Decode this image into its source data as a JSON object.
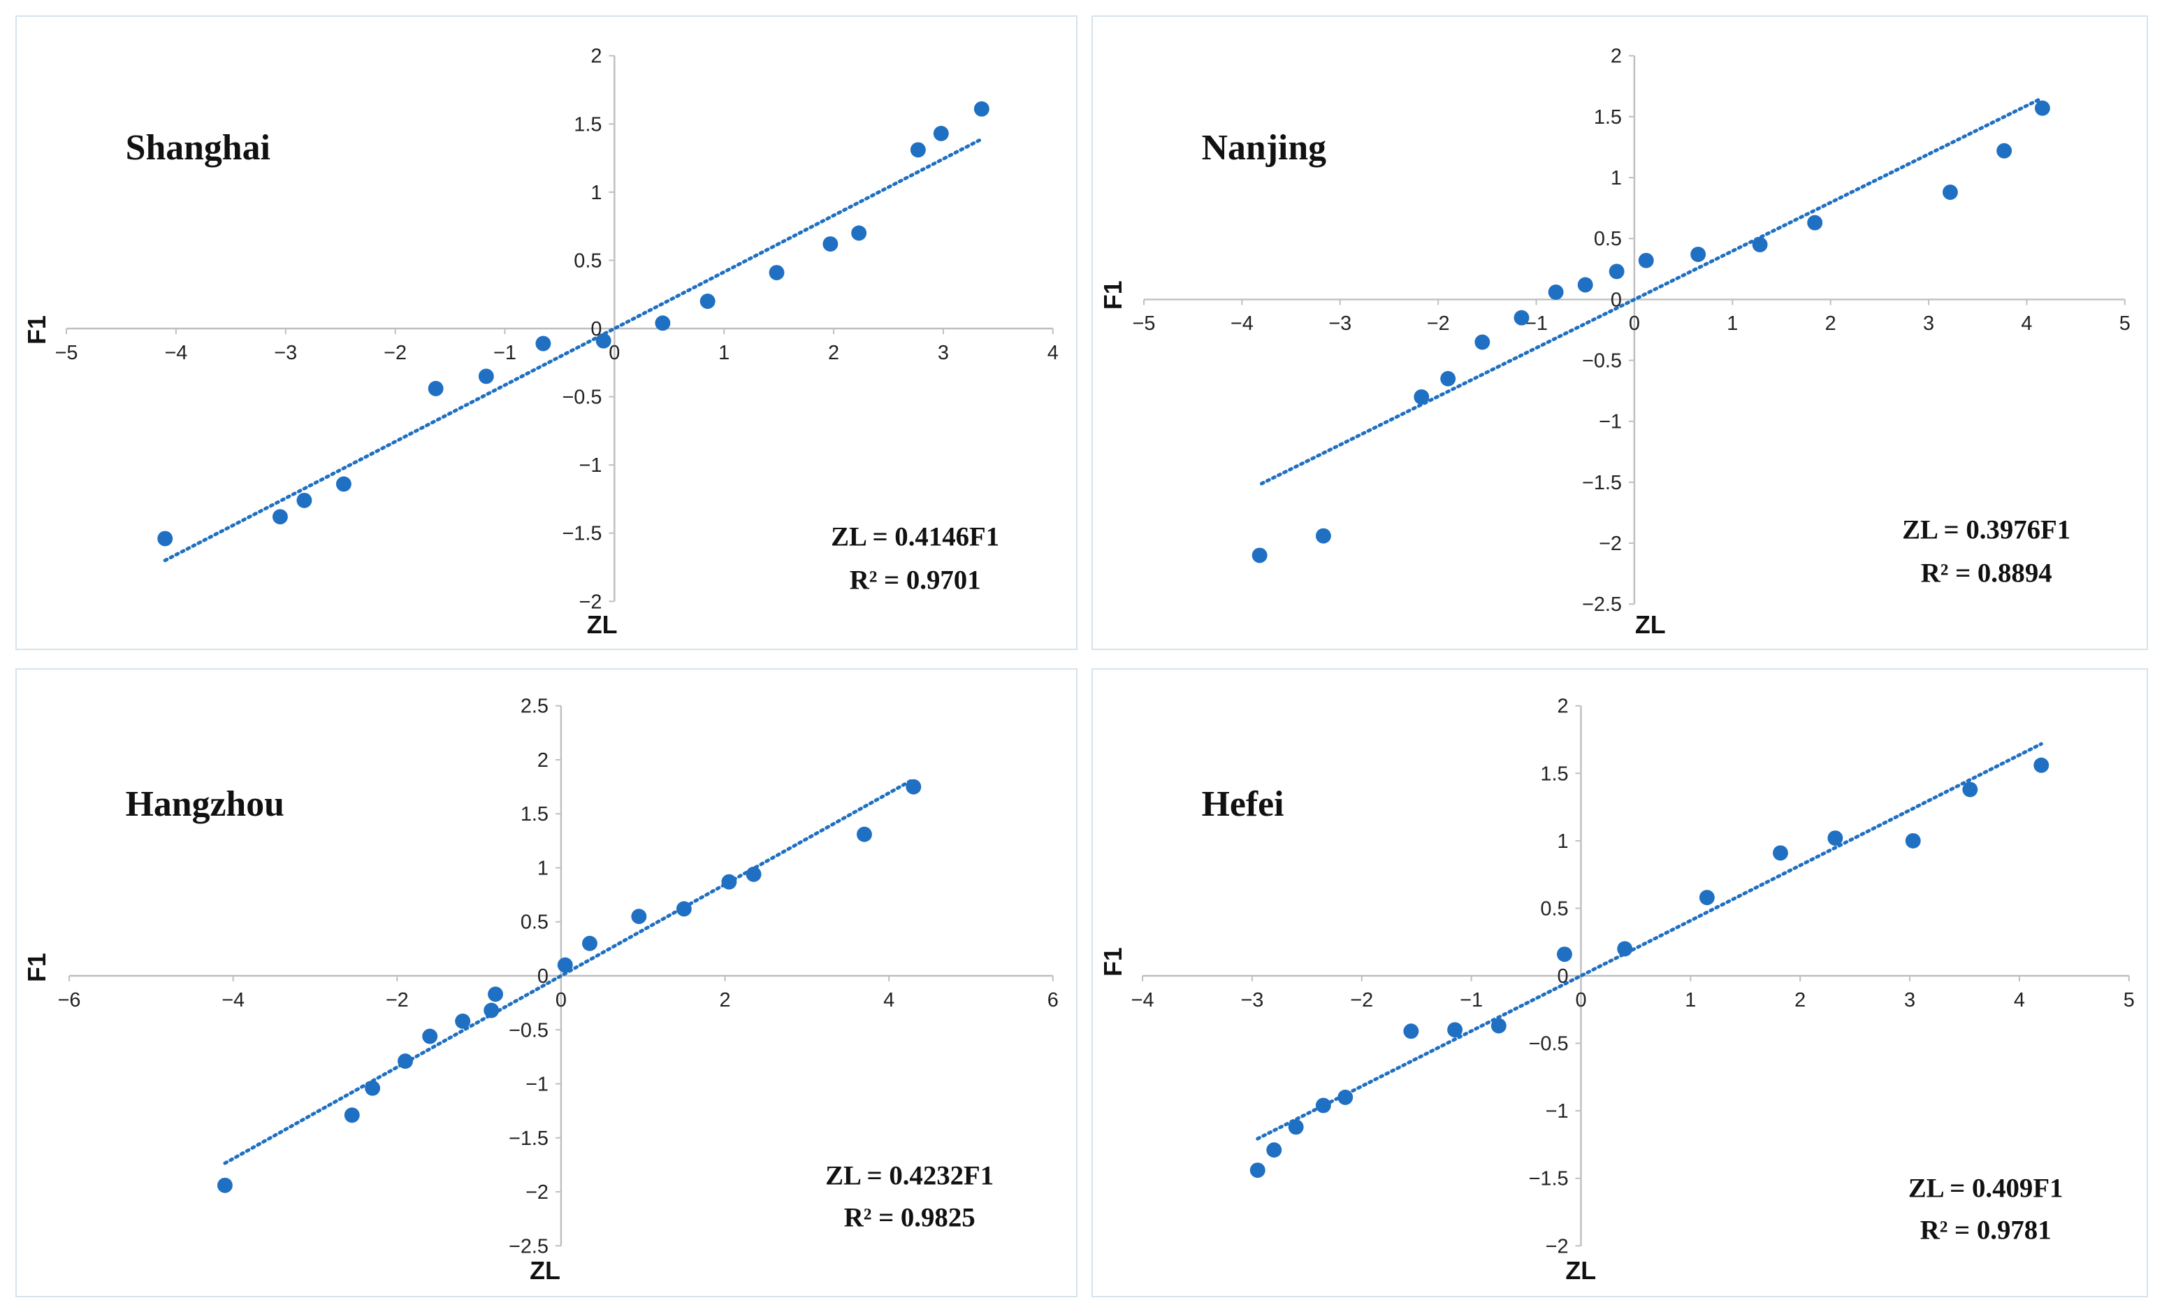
{
  "chart_data": [
    {
      "type": "scatter",
      "title": "Shanghai",
      "xlabel": "ZL",
      "ylabel": "F1",
      "xlim": [
        -5,
        4
      ],
      "ylim": [
        -2,
        2
      ],
      "xticks": [
        -5,
        -4,
        -3,
        -2,
        -1,
        0,
        1,
        2,
        3,
        4
      ],
      "yticks": [
        -2,
        -1.5,
        -1,
        -0.5,
        0,
        0.5,
        1,
        1.5,
        2
      ],
      "tick_labels_x": [
        "−5",
        "−4",
        "−3",
        "−2",
        "−1",
        "0",
        "1",
        "2",
        "3",
        "4"
      ],
      "tick_labels_y": [
        "−2",
        "−1.5",
        "−1",
        "−0.5",
        "0",
        "0.5",
        "1",
        "1.5",
        "2"
      ],
      "equation": "ZL = 0.4146F1",
      "r2_label": "R² = 0.9701",
      "trendline": {
        "slope": 0.4146,
        "x_range": [
          -4.1,
          3.35
        ]
      },
      "points": [
        {
          "x": -4.1,
          "y": -1.54
        },
        {
          "x": -3.05,
          "y": -1.38
        },
        {
          "x": -2.83,
          "y": -1.26
        },
        {
          "x": -2.47,
          "y": -1.14
        },
        {
          "x": -1.63,
          "y": -0.44
        },
        {
          "x": -1.17,
          "y": -0.35
        },
        {
          "x": -0.65,
          "y": -0.11
        },
        {
          "x": -0.1,
          "y": -0.09
        },
        {
          "x": 0.44,
          "y": 0.04
        },
        {
          "x": 0.85,
          "y": 0.2
        },
        {
          "x": 1.48,
          "y": 0.41
        },
        {
          "x": 1.97,
          "y": 0.62
        },
        {
          "x": 2.23,
          "y": 0.7
        },
        {
          "x": 2.77,
          "y": 1.31
        },
        {
          "x": 2.98,
          "y": 1.43
        },
        {
          "x": 3.35,
          "y": 1.61
        }
      ]
    },
    {
      "type": "scatter",
      "title": "Nanjing",
      "xlabel": "ZL",
      "ylabel": "F1",
      "xlim": [
        -5,
        5
      ],
      "ylim": [
        -2.5,
        2
      ],
      "xticks": [
        -5,
        -4,
        -3,
        -2,
        -1,
        0,
        1,
        2,
        3,
        4,
        5
      ],
      "yticks": [
        -2.5,
        -2,
        -1.5,
        -1,
        -0.5,
        0,
        0.5,
        1,
        1.5,
        2
      ],
      "tick_labels_x": [
        "−5",
        "−4",
        "−3",
        "−2",
        "−1",
        "0",
        "1",
        "2",
        "3",
        "4",
        "5"
      ],
      "tick_labels_y": [
        "−2.5",
        "−2",
        "−1.5",
        "−1",
        "−0.5",
        "0",
        "0.5",
        "1",
        "1.5",
        "2"
      ],
      "equation": "ZL = 0.3976F1",
      "r2_label": "R² = 0.8894",
      "trendline": {
        "slope": 0.3976,
        "x_range": [
          -3.8,
          4.15
        ]
      },
      "points": [
        {
          "x": -3.82,
          "y": -2.1
        },
        {
          "x": -3.17,
          "y": -1.94
        },
        {
          "x": -2.17,
          "y": -0.8
        },
        {
          "x": -1.9,
          "y": -0.65
        },
        {
          "x": -1.55,
          "y": -0.35
        },
        {
          "x": -1.15,
          "y": -0.15
        },
        {
          "x": -0.8,
          "y": 0.06
        },
        {
          "x": -0.5,
          "y": 0.12
        },
        {
          "x": -0.18,
          "y": 0.23
        },
        {
          "x": 0.12,
          "y": 0.32
        },
        {
          "x": 0.65,
          "y": 0.37
        },
        {
          "x": 1.28,
          "y": 0.45
        },
        {
          "x": 1.84,
          "y": 0.63
        },
        {
          "x": 3.22,
          "y": 0.88
        },
        {
          "x": 3.77,
          "y": 1.22
        },
        {
          "x": 4.16,
          "y": 1.57
        }
      ]
    },
    {
      "type": "scatter",
      "title": "Hangzhou",
      "xlabel": "ZL",
      "ylabel": "F1",
      "xlim": [
        -6,
        6
      ],
      "ylim": [
        -2.5,
        2.5
      ],
      "xticks": [
        -6,
        -4,
        -2,
        0,
        2,
        4,
        6
      ],
      "yticks": [
        -2.5,
        -2,
        -1.5,
        -1,
        -0.5,
        0,
        0.5,
        1,
        1.5,
        2,
        2.5
      ],
      "tick_labels_x": [
        "−6",
        "−4",
        "−2",
        "0",
        "2",
        "4",
        "6"
      ],
      "tick_labels_y": [
        "−2.5",
        "−2",
        "−1.5",
        "−1",
        "−0.5",
        "0",
        "0.5",
        "1",
        "1.5",
        "2",
        "2.5"
      ],
      "equation": "ZL = 0.4232F1",
      "r2_label": "R² = 0.9825",
      "trendline": {
        "slope": 0.4232,
        "x_range": [
          -4.1,
          4.3
        ]
      },
      "points": [
        {
          "x": -4.1,
          "y": -1.94
        },
        {
          "x": -2.55,
          "y": -1.29
        },
        {
          "x": -2.3,
          "y": -1.04
        },
        {
          "x": -1.9,
          "y": -0.79
        },
        {
          "x": -1.6,
          "y": -0.56
        },
        {
          "x": -1.2,
          "y": -0.42
        },
        {
          "x": -0.85,
          "y": -0.32
        },
        {
          "x": -0.8,
          "y": -0.17
        },
        {
          "x": 0.05,
          "y": 0.1
        },
        {
          "x": 0.35,
          "y": 0.3
        },
        {
          "x": 0.95,
          "y": 0.55
        },
        {
          "x": 1.5,
          "y": 0.62
        },
        {
          "x": 2.05,
          "y": 0.87
        },
        {
          "x": 2.35,
          "y": 0.94
        },
        {
          "x": 3.7,
          "y": 1.31
        },
        {
          "x": 4.3,
          "y": 1.75
        }
      ]
    },
    {
      "type": "scatter",
      "title": "Hefei",
      "xlabel": "ZL",
      "ylabel": "F1",
      "xlim": [
        -4,
        5
      ],
      "ylim": [
        -2,
        2
      ],
      "xticks": [
        -4,
        -3,
        -2,
        -1,
        0,
        1,
        2,
        3,
        4,
        5
      ],
      "yticks": [
        -2,
        -1.5,
        -1,
        -0.5,
        0,
        0.5,
        1,
        1.5,
        2
      ],
      "tick_labels_x": [
        "−4",
        "−3",
        "−2",
        "−1",
        "0",
        "1",
        "2",
        "3",
        "4",
        "5"
      ],
      "tick_labels_y": [
        "−2",
        "−1.5",
        "−1",
        "−0.5",
        "0",
        "0.5",
        "1",
        "1.5",
        "2"
      ],
      "equation": "ZL = 0.409F1",
      "r2_label": "R² = 0.9781",
      "trendline": {
        "slope": 0.409,
        "x_range": [
          -2.95,
          4.2
        ]
      },
      "points": [
        {
          "x": -2.95,
          "y": -1.44
        },
        {
          "x": -2.8,
          "y": -1.29
        },
        {
          "x": -2.6,
          "y": -1.12
        },
        {
          "x": -2.35,
          "y": -0.96
        },
        {
          "x": -2.15,
          "y": -0.9
        },
        {
          "x": -1.55,
          "y": -0.41
        },
        {
          "x": -1.15,
          "y": -0.4
        },
        {
          "x": -0.75,
          "y": -0.37
        },
        {
          "x": -0.15,
          "y": 0.16
        },
        {
          "x": 0.4,
          "y": 0.2
        },
        {
          "x": 1.15,
          "y": 0.58
        },
        {
          "x": 1.82,
          "y": 0.91
        },
        {
          "x": 2.32,
          "y": 1.02
        },
        {
          "x": 3.03,
          "y": 1.0
        },
        {
          "x": 3.55,
          "y": 1.38
        },
        {
          "x": 4.2,
          "y": 1.56
        }
      ]
    }
  ],
  "colors": {
    "marker": "#1f6fc2",
    "trendline": "#1f6fc2",
    "axis": "#bfbfbf",
    "panel_border": "#d4e3ec"
  }
}
